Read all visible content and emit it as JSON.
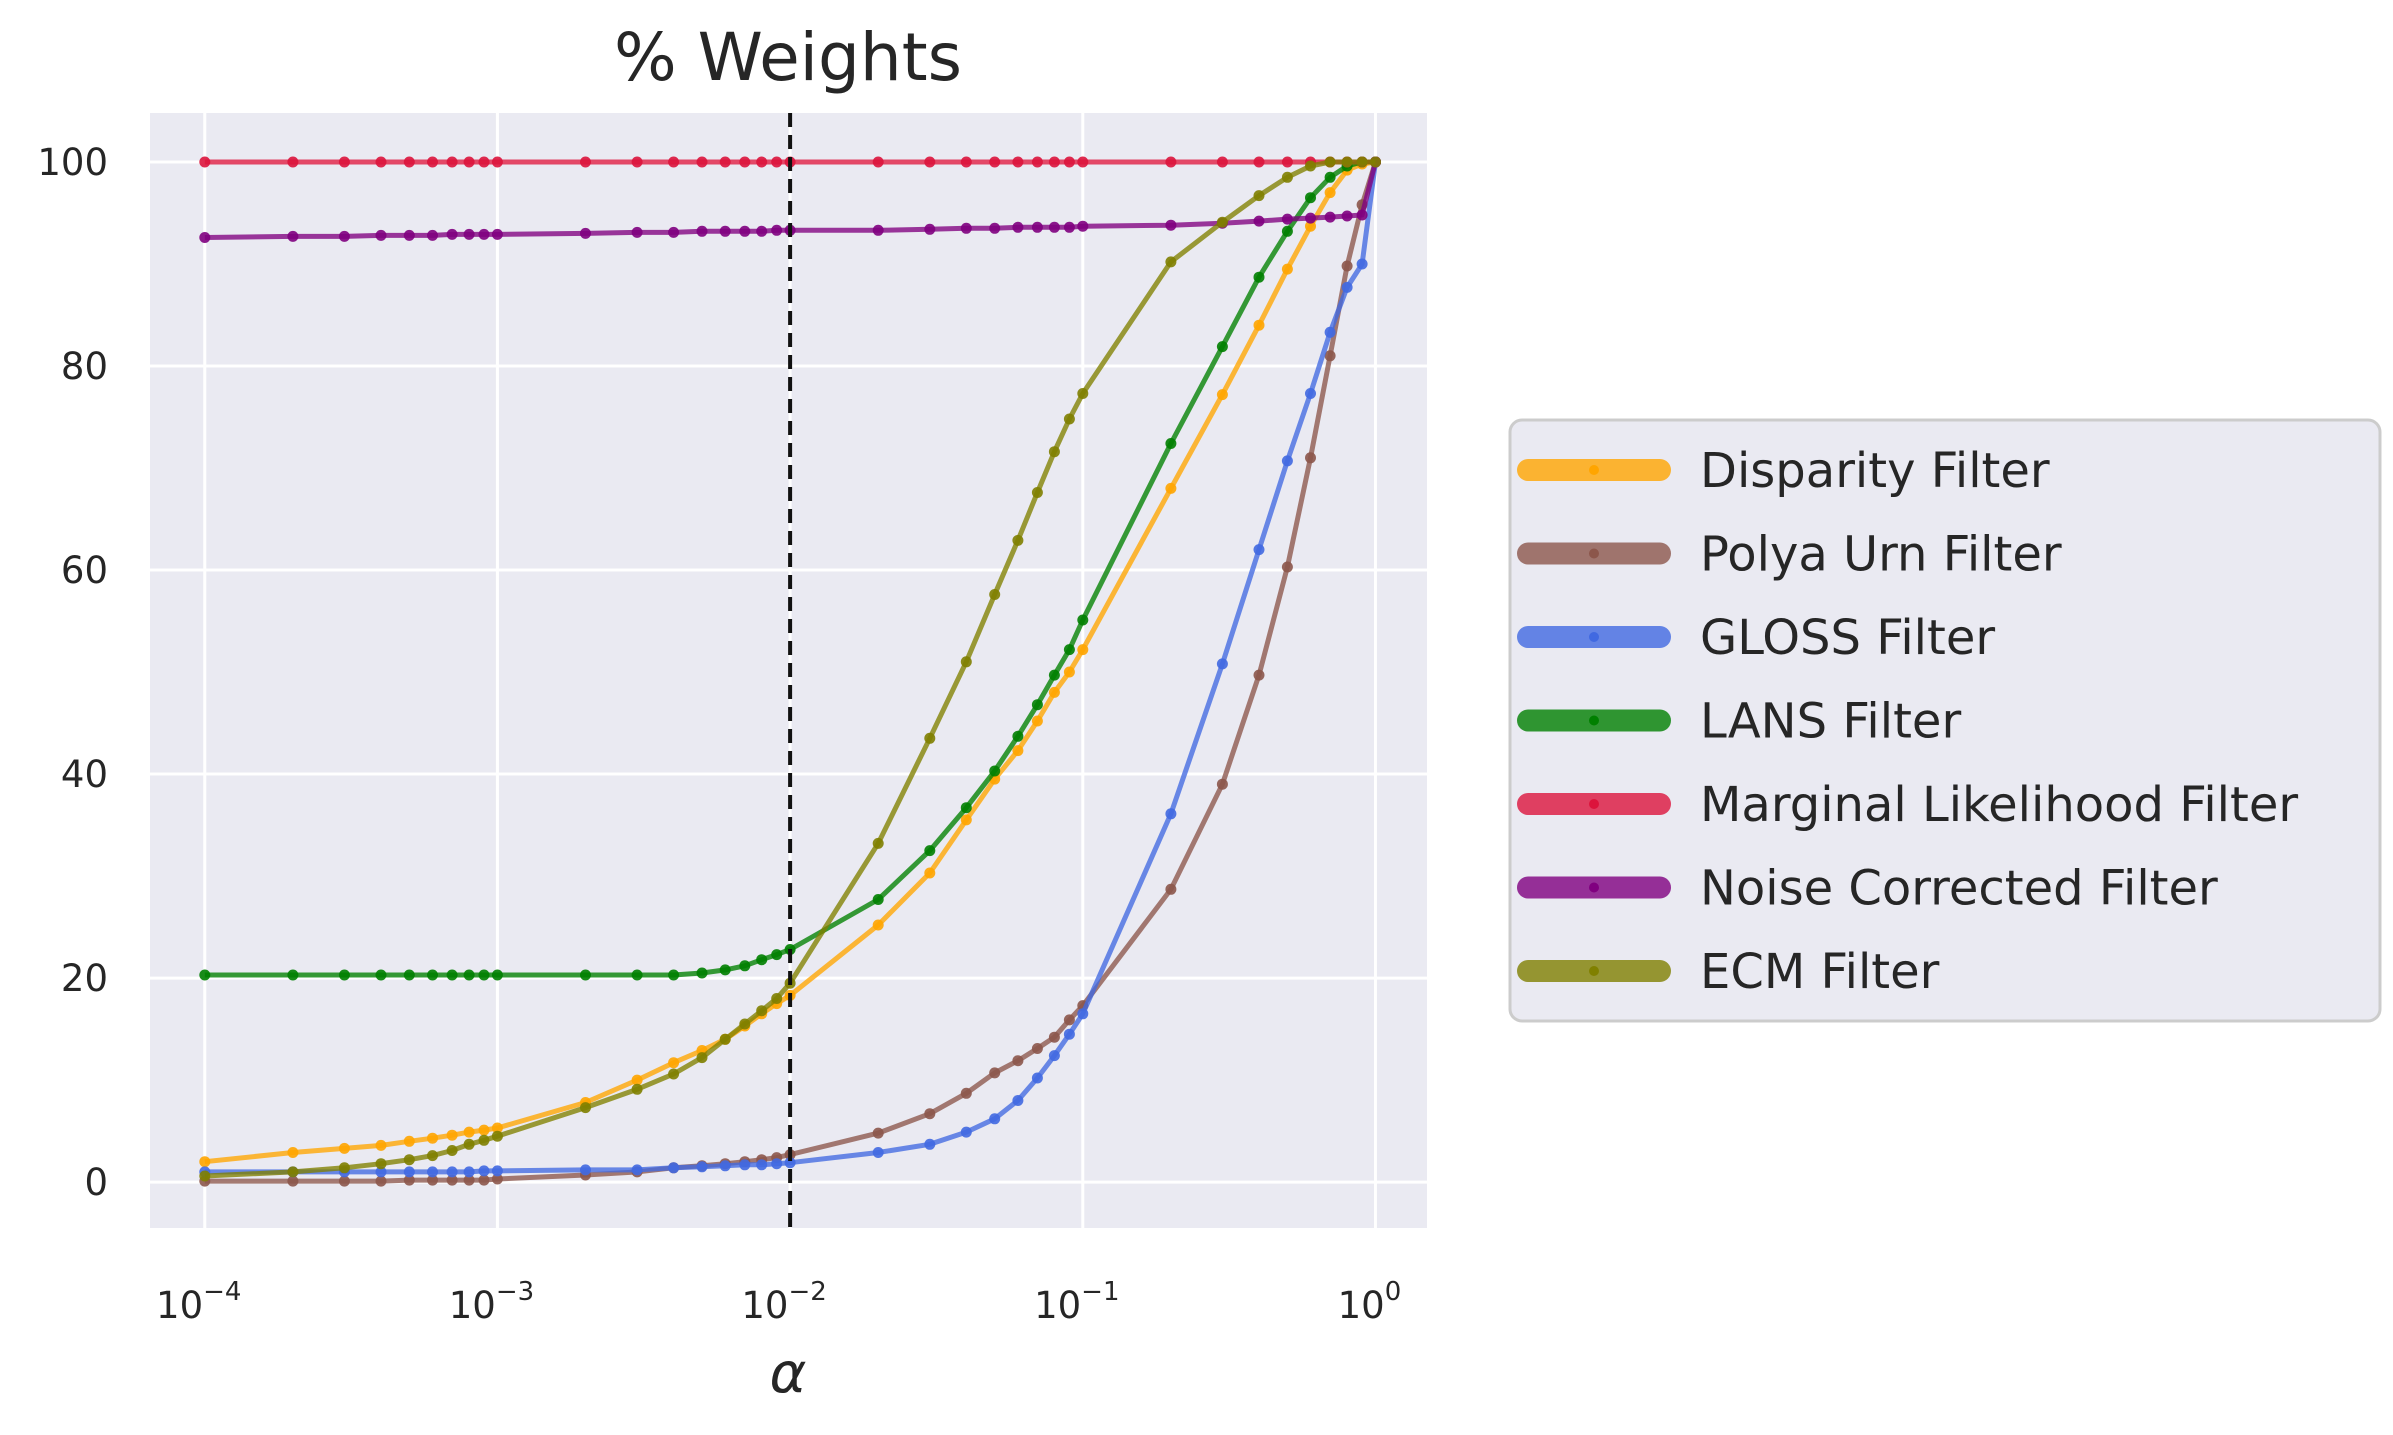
{
  "chart_data": {
    "type": "line",
    "title": "% Weights",
    "xlabel": "α",
    "ylabel": "",
    "xscale": "log",
    "xlim": [
      6.5e-05,
      1.5
    ],
    "ylim": [
      -4.5,
      104.8
    ],
    "xticks": [
      {
        "value": 0.0001,
        "base": "10",
        "exp": "−4"
      },
      {
        "value": 0.001,
        "base": "10",
        "exp": "−3"
      },
      {
        "value": 0.01,
        "base": "10",
        "exp": "−2"
      },
      {
        "value": 0.1,
        "base": "10",
        "exp": "−1"
      },
      {
        "value": 1,
        "base": "10",
        "exp": "0"
      }
    ],
    "yticks": [
      0,
      20,
      40,
      60,
      80,
      100
    ],
    "yticklabels": [
      "0",
      "20",
      "40",
      "60",
      "80",
      "100"
    ],
    "grid": true,
    "legend_position": "right, outside plot",
    "vline": {
      "x": 0.01,
      "style": "dashed",
      "color": "#111111"
    },
    "x": [
      0.0001,
      0.0002,
      0.0003,
      0.0004,
      0.0005,
      0.0006,
      0.0007,
      0.0008,
      0.0009,
      0.001,
      0.002,
      0.003,
      0.004,
      0.005,
      0.006,
      0.007,
      0.008,
      0.009,
      0.01,
      0.02,
      0.03,
      0.04,
      0.05,
      0.06,
      0.07,
      0.08,
      0.09,
      0.1,
      0.2,
      0.3,
      0.4,
      0.5,
      0.6,
      0.7,
      0.8,
      0.9,
      1.0
    ],
    "series": [
      {
        "name": "Disparity Filter",
        "color": "#FFA500",
        "values": [
          2.0,
          2.9,
          3.3,
          3.6,
          4.0,
          4.3,
          4.6,
          4.9,
          5.1,
          5.3,
          7.8,
          10.0,
          11.7,
          12.9,
          14.0,
          15.3,
          16.5,
          17.5,
          18.3,
          25.2,
          30.3,
          35.5,
          39.5,
          42.3,
          45.2,
          48.0,
          50.0,
          52.2,
          68.0,
          77.2,
          84.0,
          89.5,
          93.7,
          97.0,
          99.2,
          99.8,
          100
        ]
      },
      {
        "name": "Polya Urn Filter",
        "color": "#8C564B",
        "values": [
          0.1,
          0.1,
          0.1,
          0.1,
          0.2,
          0.2,
          0.2,
          0.2,
          0.2,
          0.3,
          0.7,
          1.0,
          1.4,
          1.6,
          1.8,
          2.0,
          2.2,
          2.4,
          2.7,
          4.8,
          6.7,
          8.7,
          10.7,
          11.9,
          13.1,
          14.2,
          15.9,
          17.3,
          28.7,
          39.0,
          49.7,
          60.3,
          71.0,
          81.0,
          89.8,
          95.8,
          100
        ]
      },
      {
        "name": "GLOSS Filter",
        "color": "#4169E1",
        "values": [
          1.0,
          1.0,
          1.0,
          1.0,
          1.0,
          1.0,
          1.0,
          1.0,
          1.1,
          1.1,
          1.2,
          1.2,
          1.4,
          1.5,
          1.6,
          1.7,
          1.7,
          1.8,
          1.9,
          2.9,
          3.7,
          4.9,
          6.2,
          8.0,
          10.2,
          12.4,
          14.5,
          16.5,
          36.1,
          50.8,
          62.0,
          70.7,
          77.3,
          83.3,
          87.7,
          90.0,
          100
        ]
      },
      {
        "name": "LANS Filter",
        "color": "#008000",
        "values": [
          20.3,
          20.3,
          20.3,
          20.3,
          20.3,
          20.3,
          20.3,
          20.3,
          20.3,
          20.3,
          20.3,
          20.3,
          20.3,
          20.5,
          20.8,
          21.2,
          21.8,
          22.3,
          22.8,
          27.7,
          32.5,
          36.7,
          40.3,
          43.7,
          46.8,
          49.7,
          52.2,
          55.1,
          72.4,
          81.9,
          88.7,
          93.2,
          96.5,
          98.5,
          99.6,
          100,
          100
        ]
      },
      {
        "name": "Marginal Likelihood Filter",
        "color": "#DC143C",
        "values": [
          100,
          100,
          100,
          100,
          100,
          100,
          100,
          100,
          100,
          100,
          100,
          100,
          100,
          100,
          100,
          100,
          100,
          100,
          100,
          100,
          100,
          100,
          100,
          100,
          100,
          100,
          100,
          100,
          100,
          100,
          100,
          100,
          100,
          100,
          100,
          100,
          100
        ]
      },
      {
        "name": "Noise Corrected Filter",
        "color": "#800080",
        "values": [
          92.6,
          92.7,
          92.7,
          92.8,
          92.8,
          92.8,
          92.9,
          92.9,
          92.9,
          92.9,
          93.0,
          93.1,
          93.1,
          93.2,
          93.2,
          93.2,
          93.2,
          93.3,
          93.3,
          93.3,
          93.4,
          93.5,
          93.5,
          93.6,
          93.6,
          93.6,
          93.6,
          93.7,
          93.8,
          94.0,
          94.2,
          94.4,
          94.5,
          94.6,
          94.7,
          94.8,
          100
        ]
      },
      {
        "name": "ECM Filter",
        "color": "#808000",
        "values": [
          0.6,
          1.0,
          1.4,
          1.8,
          2.2,
          2.6,
          3.1,
          3.7,
          4.1,
          4.5,
          7.3,
          9.1,
          10.6,
          12.2,
          14.0,
          15.5,
          16.8,
          18.0,
          19.5,
          33.2,
          43.5,
          51.0,
          57.6,
          62.9,
          67.6,
          71.6,
          74.8,
          77.3,
          90.2,
          94.1,
          96.7,
          98.5,
          99.6,
          100,
          100,
          100,
          100
        ]
      }
    ]
  }
}
